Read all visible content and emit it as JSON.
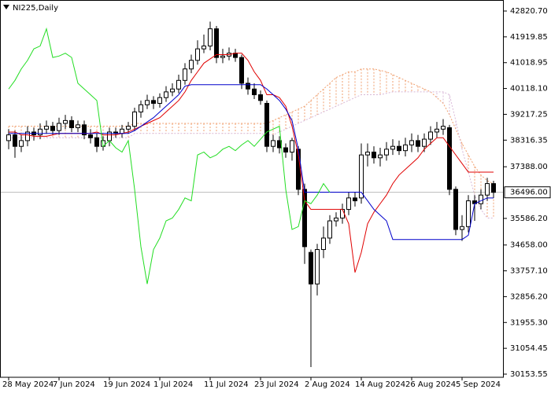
{
  "chart_data": {
    "type": "candlestick",
    "title": "NI225,Daily",
    "categories": [
      "28 May 2024",
      null,
      null,
      null,
      null,
      null,
      null,
      null,
      "7 Jun 2024",
      null,
      null,
      null,
      null,
      null,
      null,
      null,
      "19 Jun 2024",
      null,
      null,
      null,
      null,
      null,
      null,
      null,
      "1 Jul 2024",
      null,
      null,
      null,
      null,
      null,
      null,
      null,
      "11 Jul 2024",
      null,
      null,
      null,
      null,
      null,
      null,
      null,
      "23 Jul 2024",
      null,
      null,
      null,
      null,
      null,
      null,
      null,
      "2 Aug 2024",
      null,
      null,
      null,
      null,
      null,
      null,
      null,
      "14 Aug 2024",
      null,
      null,
      null,
      null,
      null,
      null,
      null,
      "26 Aug 2024",
      null,
      null,
      null,
      null,
      null,
      null,
      null,
      "5 Sep 2024",
      null,
      null,
      null,
      null,
      null
    ],
    "open": [
      38300,
      38500,
      38100,
      38300,
      38600,
      38500,
      38700,
      38800,
      38650,
      38900,
      39000,
      38750,
      38850,
      38500,
      38400,
      38100,
      38300,
      38600,
      38550,
      38700,
      38800,
      39300,
      39550,
      39700,
      39600,
      39800,
      40000,
      40100,
      40400,
      40800,
      41100,
      41500,
      41600,
      42200,
      41200,
      41250,
      41350,
      41200,
      40300,
      40100,
      39900,
      39600,
      38100,
      38300,
      38050,
      37900,
      38000,
      36600,
      34400,
      33300,
      34500,
      34900,
      35500,
      35600,
      35900,
      36300,
      36300,
      37800,
      37900,
      37700,
      37800,
      38000,
      38100,
      37950,
      38150,
      38300,
      38100,
      38350,
      38600,
      38700,
      38750,
      36600,
      35200,
      35300,
      36200,
      36100,
      36400,
      36800
    ],
    "high": [
      38700,
      38650,
      38500,
      38800,
      38750,
      38900,
      39000,
      38950,
      39100,
      39200,
      39150,
      39000,
      39000,
      38700,
      38550,
      38450,
      38750,
      38750,
      38850,
      38950,
      39450,
      39700,
      39900,
      39850,
      39950,
      40200,
      40300,
      40600,
      41000,
      41300,
      41800,
      42000,
      42450,
      42300,
      41500,
      41550,
      41500,
      41300,
      40500,
      40300,
      40050,
      39700,
      38500,
      38450,
      38200,
      38400,
      38100,
      36800,
      34500,
      34700,
      35300,
      35700,
      35800,
      36100,
      36500,
      36500,
      38200,
      38200,
      38100,
      38050,
      38250,
      38350,
      38300,
      38400,
      38550,
      38500,
      38550,
      38800,
      38950,
      39050,
      38850,
      36700,
      35700,
      36400,
      36400,
      36600,
      37000,
      36900
    ],
    "low": [
      38000,
      37700,
      37900,
      38100,
      38300,
      38350,
      38550,
      38500,
      38500,
      38700,
      38600,
      38600,
      38350,
      38200,
      37900,
      37950,
      38100,
      38400,
      38400,
      38550,
      38650,
      39100,
      39400,
      39400,
      39450,
      39650,
      39850,
      39950,
      40250,
      40650,
      40950,
      41350,
      41450,
      41000,
      41000,
      41100,
      41050,
      40100,
      39900,
      39750,
      39550,
      37900,
      37900,
      37850,
      37700,
      37600,
      36400,
      34000,
      30400,
      32900,
      34200,
      34700,
      35300,
      35400,
      35700,
      36000,
      36100,
      37400,
      37500,
      37400,
      37600,
      37800,
      37800,
      37750,
      37900,
      37900,
      37900,
      38150,
      38400,
      38500,
      36400,
      35000,
      34800,
      35100,
      35500,
      35900,
      36200,
      36300
    ],
    "close": [
      38500,
      38100,
      38300,
      38600,
      38500,
      38700,
      38800,
      38650,
      38900,
      39000,
      38750,
      38850,
      38500,
      38400,
      38100,
      38300,
      38600,
      38550,
      38700,
      38800,
      39300,
      39550,
      39700,
      39600,
      39800,
      40000,
      40100,
      40400,
      40800,
      41100,
      41500,
      41600,
      42200,
      41200,
      41250,
      41350,
      41200,
      40300,
      40100,
      39900,
      39700,
      38100,
      38300,
      38050,
      37900,
      38300,
      36600,
      34600,
      33300,
      34500,
      34900,
      35500,
      35600,
      35900,
      36300,
      36200,
      37800,
      37900,
      37700,
      37800,
      38000,
      38100,
      37950,
      38150,
      38300,
      38100,
      38350,
      38600,
      38700,
      38800,
      36600,
      35200,
      35300,
      36200,
      36100,
      36400,
      36800,
      36496
    ],
    "up_color": "#ffffff",
    "down_color": "#000000",
    "lines": [
      {
        "color": "#e00000",
        "values": [
          38600,
          38600,
          38500,
          38500,
          38450,
          38450,
          38450,
          38500,
          38550,
          38550,
          38550,
          38550,
          38550,
          38550,
          38600,
          38500,
          38500,
          38500,
          38550,
          38600,
          38700,
          38800,
          38900,
          39000,
          39100,
          39300,
          39500,
          39700,
          40000,
          40400,
          40700,
          41000,
          41150,
          41300,
          41300,
          41300,
          41350,
          41350,
          41100,
          40700,
          40400,
          39900,
          39900,
          39800,
          39500,
          38800,
          37800,
          36200,
          35900,
          35900,
          35900,
          35900,
          35900,
          35900,
          35400,
          33700,
          34400,
          35400,
          35800,
          36100,
          36400,
          36800,
          37100,
          37300,
          37500,
          37700,
          38000,
          38200,
          38400,
          38400,
          38100,
          37800,
          37500,
          37200,
          37200,
          37200,
          37200,
          37200
        ]
      },
      {
        "color": "#0000cc",
        "values": [
          38550,
          38550,
          38550,
          38550,
          38550,
          38550,
          38550,
          38550,
          38550,
          38550,
          38550,
          38550,
          38550,
          38550,
          38550,
          38550,
          38550,
          38550,
          38550,
          38550,
          38650,
          38800,
          38950,
          39100,
          39300,
          39500,
          39700,
          39900,
          40200,
          40250,
          40250,
          40250,
          40250,
          40250,
          40250,
          40250,
          40250,
          40250,
          40250,
          40250,
          40250,
          40100,
          39900,
          39700,
          39400,
          39000,
          38000,
          36500,
          36500,
          36500,
          36500,
          36500,
          36500,
          36500,
          36500,
          36500,
          36500,
          36200,
          35900,
          35700,
          35500,
          34850,
          34850,
          34850,
          34850,
          34850,
          34850,
          34850,
          34850,
          34850,
          34850,
          34850,
          34850,
          35000,
          36100,
          36200,
          36300,
          36300
        ]
      },
      {
        "color": "#22dd22",
        "values": [
          40100,
          40400,
          40800,
          41100,
          41500,
          41600,
          42200,
          41200,
          41250,
          41350,
          41200,
          40300,
          40100,
          39900,
          39700,
          38100,
          38300,
          38050,
          37900,
          38300,
          36600,
          34600,
          33300,
          34500,
          34900,
          35500,
          35600,
          35900,
          36300,
          36200,
          37800,
          37900,
          37700,
          37800,
          38000,
          38100,
          37950,
          38150,
          38300,
          38100,
          38350,
          38600,
          38700,
          38800,
          36600,
          35200,
          35300,
          36200,
          36100,
          36400,
          36800,
          36496,
          null,
          null,
          null,
          null,
          null,
          null,
          null,
          null,
          null,
          null,
          null,
          null,
          null,
          null,
          null,
          null,
          null,
          null,
          null,
          null,
          null,
          null,
          null,
          null
        ]
      }
    ],
    "cloud": {
      "span_a_color": "#f0a070",
      "span_b_color": "#d8b8d8",
      "span_a": [
        38800,
        38800,
        38800,
        38800,
        38800,
        38800,
        38800,
        38800,
        38800,
        38800,
        38800,
        38800,
        38800,
        38800,
        38800,
        38800,
        38800,
        38800,
        38800,
        38800,
        38900,
        38900,
        38900,
        38900,
        38900,
        38900,
        38900,
        38900,
        38900,
        38900,
        38900,
        38900,
        38900,
        38900,
        38900,
        38900,
        38900,
        38900,
        38900,
        38900,
        38900,
        38900,
        39000,
        39100,
        39200,
        39300,
        39400,
        39500,
        39700,
        39900,
        40100,
        40300,
        40500,
        40600,
        40700,
        40700,
        40800,
        40800,
        40800,
        40750,
        40700,
        40600,
        40500,
        40400,
        40300,
        40200,
        40100,
        40000,
        39800,
        39600,
        39200,
        38700,
        38200,
        37800,
        37400,
        37100,
        36900,
        36800
      ],
      "span_b": [
        38400,
        38400,
        38400,
        38400,
        38400,
        38400,
        38400,
        38400,
        38400,
        38400,
        38400,
        38400,
        38400,
        38400,
        38400,
        38400,
        38400,
        38400,
        38400,
        38400,
        38550,
        38550,
        38550,
        38550,
        38550,
        38550,
        38550,
        38550,
        38550,
        38550,
        38550,
        38550,
        38550,
        38550,
        38550,
        38550,
        38550,
        38550,
        38550,
        38550,
        38550,
        38500,
        38500,
        38600,
        38700,
        38800,
        38900,
        39000,
        39100,
        39200,
        39300,
        39400,
        39500,
        39600,
        39700,
        39800,
        39900,
        39900,
        39900,
        39900,
        39950,
        40000,
        40000,
        40000,
        40000,
        40000,
        40000,
        40000,
        40000,
        40000,
        39900,
        39000,
        38000,
        37200,
        36400,
        35900,
        35600,
        35600
      ]
    },
    "price_line": {
      "value": 36496,
      "label": "36496.00"
    },
    "ylim": [
      30044,
      43205
    ],
    "yticks": [
      {
        "value": 42820.7,
        "label": "42820.70"
      },
      {
        "value": 41919.85,
        "label": "41919.85"
      },
      {
        "value": 41018.95,
        "label": "41018.95"
      },
      {
        "value": 40118.1,
        "label": "40118.10"
      },
      {
        "value": 39217.25,
        "label": "39217.25"
      },
      {
        "value": 38316.35,
        "label": "38316.35"
      },
      {
        "value": 37388,
        "label": "37388.00"
      },
      {
        "value": 35586.2,
        "label": "35586.20"
      },
      {
        "value": 34658,
        "label": "34658.00"
      },
      {
        "value": 33757.1,
        "label": "33757.10"
      },
      {
        "value": 32856.2,
        "label": "32856.20"
      },
      {
        "value": 31955.3,
        "label": "31955.30"
      },
      {
        "value": 31054.45,
        "label": "31054.45"
      },
      {
        "value": 30153.55,
        "label": "30153.55"
      }
    ]
  }
}
